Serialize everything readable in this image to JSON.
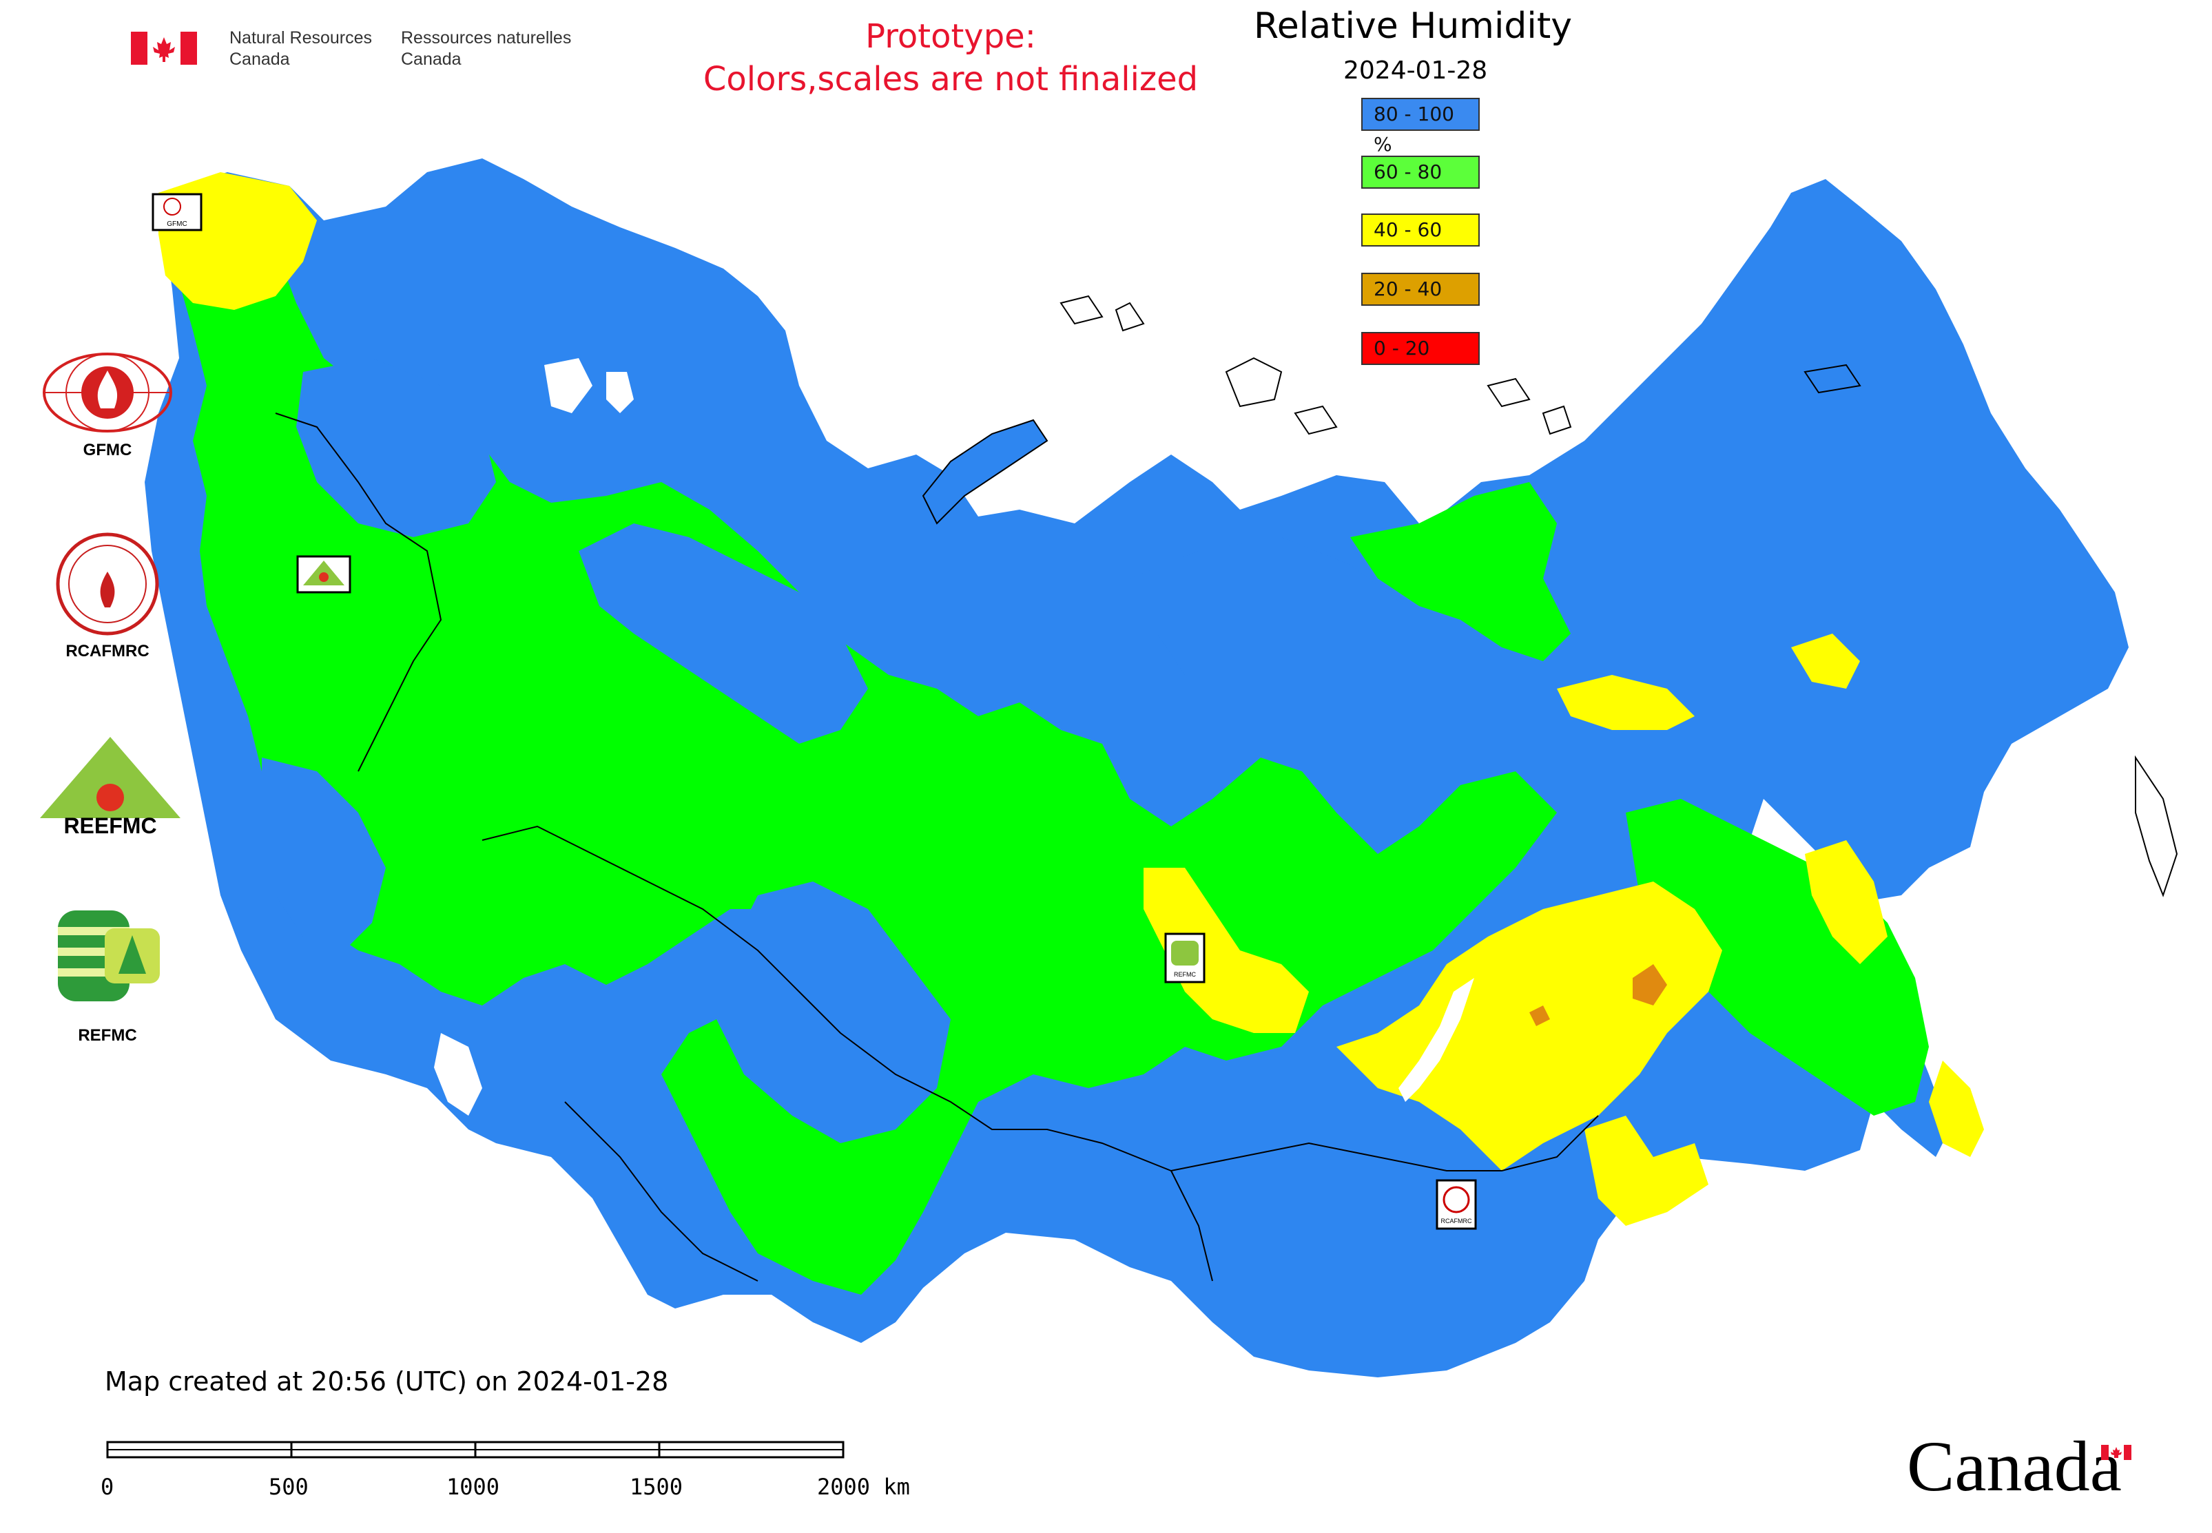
{
  "header": {
    "agency_en_line1": "Natural Resources",
    "agency_en_line2": "Canada",
    "agency_fr_line1": "Ressources naturelles",
    "agency_fr_line2": "Canada",
    "prototype_line1": "Prototype:",
    "prototype_line2": "Colors,scales are not finalized"
  },
  "map": {
    "title": "Relative Humidity",
    "date": "2024-01-28",
    "legend": [
      {
        "label": "80 - 100 %",
        "color": "#3a8af0"
      },
      {
        "label": "60 - 80",
        "color": "#5cff3a"
      },
      {
        "label": "40 - 60",
        "color": "#ffff00"
      },
      {
        "label": "20 - 40",
        "color": "#dda000"
      },
      {
        "label": "0 - 20",
        "color": "#ff0000"
      }
    ],
    "colors": {
      "humid_80_100": "#2e86f0",
      "humid_60_80": "#00ff00",
      "humid_40_60": "#ffff00",
      "humid_20_40": "#e08a10",
      "boundary": "#000000",
      "accent_red": "#e8142e"
    }
  },
  "logos": [
    {
      "label": "GFMC"
    },
    {
      "label": "RCAFMRC"
    },
    {
      "label": "REEFMC"
    },
    {
      "label": "REFMC"
    }
  ],
  "logo_texts": {
    "reefmc_wordmark": "REEFMC",
    "map_badge_gfmc": "GFMC",
    "map_badge_refmc": "REFMC",
    "map_badge_rcafmrc": "RCAFMRC"
  },
  "footer": {
    "created": "Map created at 20:56 (UTC) on 2024-01-28",
    "scale_ticks": [
      "0",
      "500",
      "1000",
      "1500",
      "2000 km"
    ],
    "wordmark": "Canada"
  }
}
